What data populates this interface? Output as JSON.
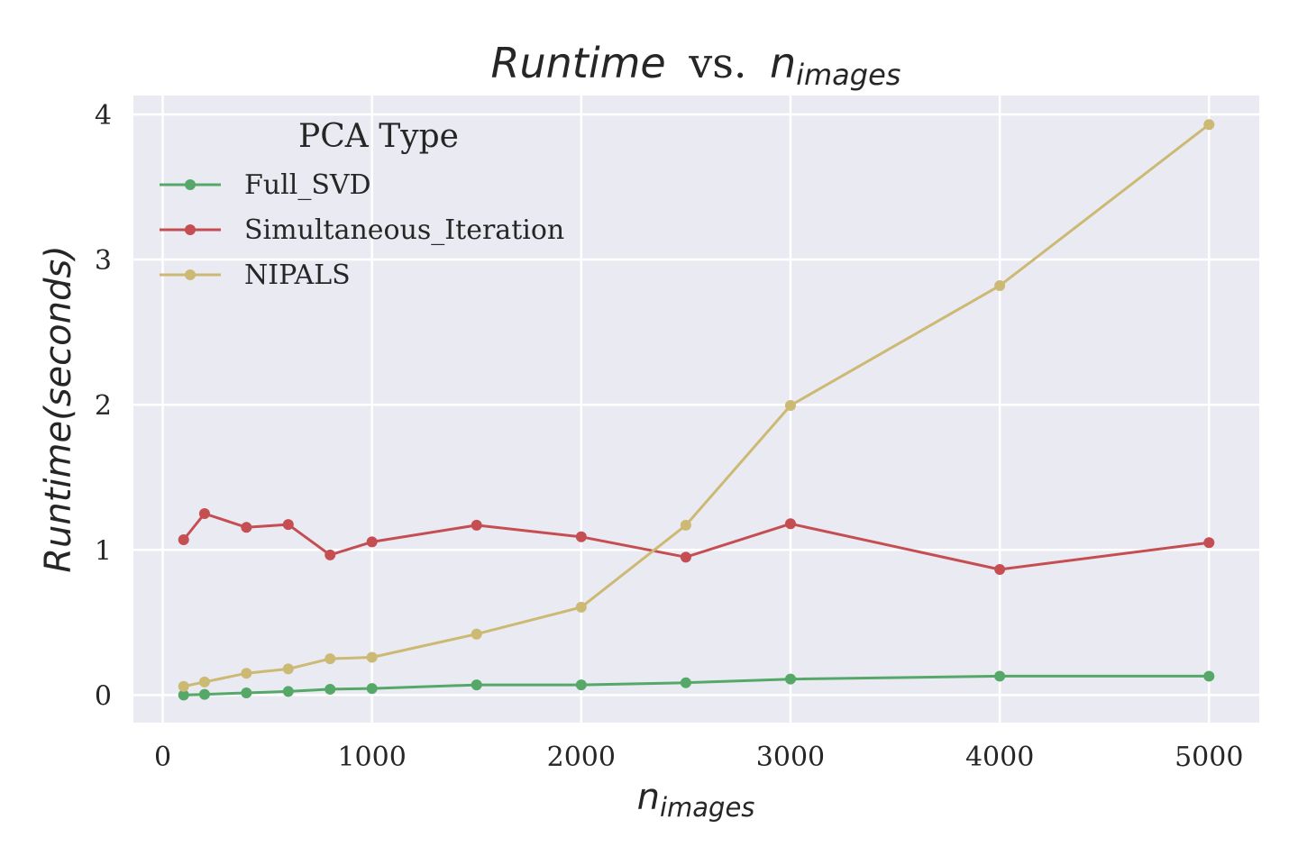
{
  "chart_data": {
    "type": "line",
    "title": {
      "main": "Runtime",
      "connector": "vs.",
      "var": "n",
      "sub": "images"
    },
    "xlabel": {
      "var": "n",
      "sub": "images"
    },
    "ylabel": {
      "text": "Runtime(seconds)"
    },
    "xlim": [
      -140,
      5240
    ],
    "ylim": [
      -0.19,
      4.13
    ],
    "x_ticks": [
      0,
      1000,
      2000,
      3000,
      4000,
      5000
    ],
    "y_ticks": [
      0,
      1,
      2,
      3,
      4
    ],
    "grid": true,
    "legend": {
      "title": "PCA Type",
      "placement": "top-left"
    },
    "x": [
      100,
      200,
      400,
      600,
      800,
      1000,
      1500,
      2000,
      2500,
      3000,
      4000,
      5000
    ],
    "series": [
      {
        "name": "Full_SVD",
        "color": "#55a868",
        "values": [
          0.0,
          0.005,
          0.015,
          0.025,
          0.04,
          0.045,
          0.07,
          0.07,
          0.085,
          0.11,
          0.13,
          0.13
        ]
      },
      {
        "name": "Simultaneous_Iteration",
        "color": "#c44e52",
        "values": [
          1.07,
          1.25,
          1.155,
          1.175,
          0.965,
          1.055,
          1.17,
          1.09,
          0.95,
          1.18,
          0.865,
          1.05
        ]
      },
      {
        "name": "NIPALS",
        "color": "#ccb974",
        "values": [
          0.06,
          0.09,
          0.15,
          0.18,
          0.25,
          0.26,
          0.42,
          0.605,
          1.17,
          1.995,
          2.82,
          3.93
        ]
      }
    ]
  }
}
